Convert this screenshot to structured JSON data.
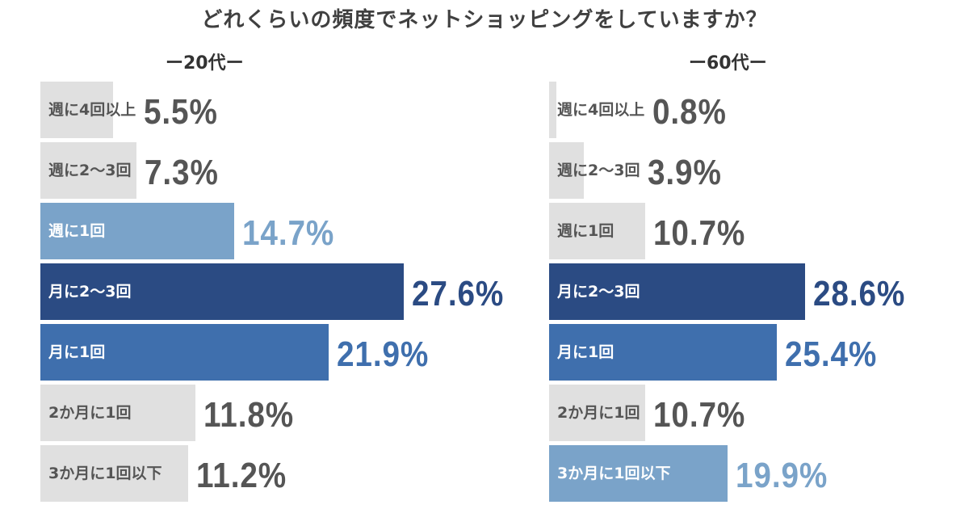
{
  "title": "どれくらいの頻度でネットショッピングをしていますか？",
  "colors": {
    "gray": "#e0e0e0",
    "light_blue": "#7aa3c9",
    "mid_blue": "#3f6fad",
    "dark_blue": "#2b4b83",
    "gray_text": "#555555",
    "white_text": "#ffffff"
  },
  "chart_data": [
    {
      "type": "bar",
      "title": "ー20代ー",
      "categories": [
        "週に4回以上",
        "週に2〜3回",
        "週に1回",
        "月に2〜3回",
        "月に1回",
        "2か月に1回",
        "3か月に1回以下"
      ],
      "values": [
        5.5,
        7.3,
        14.7,
        27.6,
        21.9,
        11.8,
        11.2
      ],
      "value_labels": [
        "5.5%",
        "7.3%",
        "14.7%",
        "27.6%",
        "21.9%",
        "11.8%",
        "11.2%"
      ],
      "bar_colors": [
        "gray",
        "gray",
        "light_blue",
        "dark_blue",
        "mid_blue",
        "gray",
        "gray"
      ],
      "label_colors": [
        "gray_text",
        "gray_text",
        "white_text",
        "white_text",
        "white_text",
        "gray_text",
        "gray_text"
      ],
      "value_colors": [
        "gray_text",
        "gray_text",
        "light_blue",
        "dark_blue",
        "mid_blue",
        "gray_text",
        "gray_text"
      ],
      "xlim": [
        0,
        30
      ]
    },
    {
      "type": "bar",
      "title": "ー60代ー",
      "categories": [
        "週に4回以上",
        "週に2〜3回",
        "週に1回",
        "月に2〜3回",
        "月に1回",
        "2か月に1回",
        "3か月に1回以下"
      ],
      "values": [
        0.8,
        3.9,
        10.7,
        28.6,
        25.4,
        10.7,
        19.9
      ],
      "value_labels": [
        "0.8%",
        "3.9%",
        "10.7%",
        "28.6%",
        "25.4%",
        "10.7%",
        "19.9%"
      ],
      "bar_colors": [
        "gray",
        "gray",
        "gray",
        "dark_blue",
        "mid_blue",
        "gray",
        "light_blue"
      ],
      "label_colors": [
        "gray_text",
        "gray_text",
        "gray_text",
        "white_text",
        "white_text",
        "gray_text",
        "white_text"
      ],
      "value_colors": [
        "gray_text",
        "gray_text",
        "gray_text",
        "dark_blue",
        "mid_blue",
        "gray_text",
        "light_blue"
      ],
      "xlim": [
        0,
        30
      ]
    }
  ]
}
